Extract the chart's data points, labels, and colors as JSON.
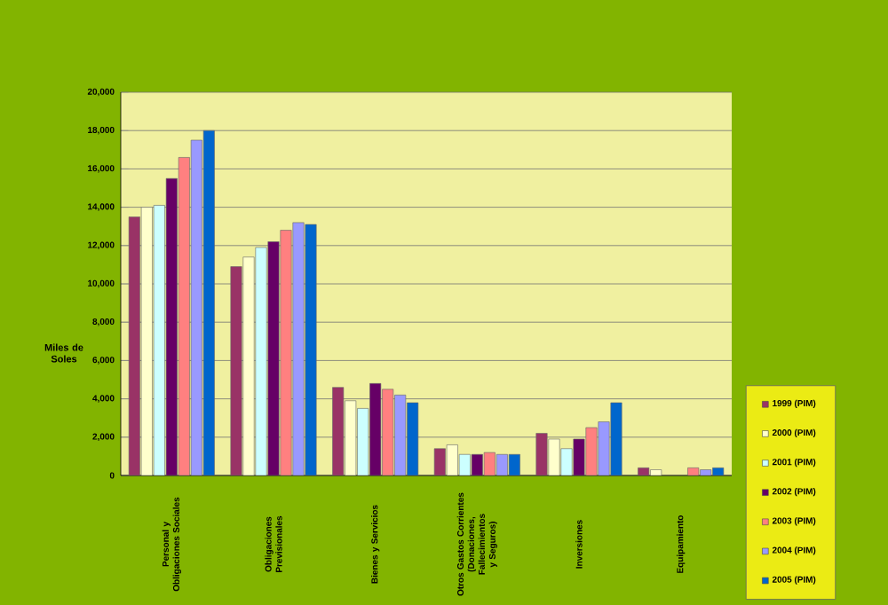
{
  "chart_data": {
    "type": "bar",
    "ylabel": "Miles de Soles",
    "categories": [
      "Personal y Obligaciones Sociales",
      "Obligaciones Previsionales",
      "Bienes y Servicios",
      "Otros Gastos Corrientes (Donaciones, Fallecimientos y Seguros)",
      "Inversiones",
      "Equipamiento"
    ],
    "series": [
      {
        "name": "1999 (PIM)",
        "color": "#993366",
        "values": [
          13500,
          10900,
          4600,
          1400,
          2200,
          400
        ]
      },
      {
        "name": "2000 (PIM)",
        "color": "#ffffcc",
        "values": [
          14000,
          11400,
          3900,
          1600,
          1900,
          300
        ]
      },
      {
        "name": "2001 (PIM)",
        "color": "#ccffff",
        "values": [
          14100,
          11900,
          3500,
          1100,
          1400,
          null
        ]
      },
      {
        "name": "2002 (PIM)",
        "color": "#660066",
        "values": [
          15500,
          12200,
          4800,
          1100,
          1900,
          null
        ]
      },
      {
        "name": "2003 (PIM)",
        "color": "#ff8080",
        "values": [
          16600,
          12800,
          4500,
          1200,
          2500,
          400
        ]
      },
      {
        "name": "2004 (PIM)",
        "color": "#9999ff",
        "values": [
          17500,
          13200,
          4200,
          1100,
          2800,
          300
        ]
      },
      {
        "name": "2005 (PIM)",
        "color": "#0066cc",
        "values": [
          18000,
          13100,
          3800,
          1100,
          3800,
          400
        ]
      }
    ],
    "ylim": [
      0,
      20000
    ],
    "yticks": [
      {
        "value": 0,
        "label": "0"
      },
      {
        "value": 2000,
        "label": "2,000"
      },
      {
        "value": 4000,
        "label": "4,000"
      },
      {
        "value": 6000,
        "label": "6,000"
      },
      {
        "value": 8000,
        "label": "8,000"
      },
      {
        "value": 10000,
        "label": "10,000"
      },
      {
        "value": 12000,
        "label": "12,000"
      },
      {
        "value": 14000,
        "label": "14,000"
      },
      {
        "value": 16000,
        "label": "16,000"
      },
      {
        "value": 18000,
        "label": "18,000"
      },
      {
        "value": 20000,
        "label": "20,000"
      }
    ],
    "grid": "y",
    "legend": "bottom right"
  }
}
